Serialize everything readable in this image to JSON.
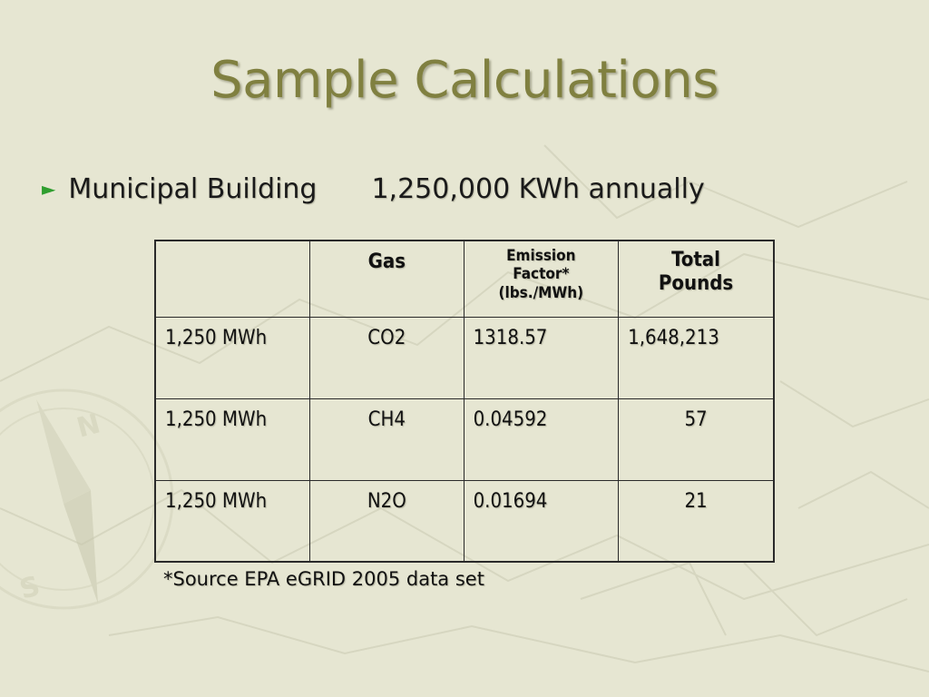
{
  "slide": {
    "title": "Sample Calculations",
    "bullet": {
      "icon": "triangle-right-bullet-icon",
      "label": "Municipal Building",
      "value": "1,250,000 KWh annually"
    },
    "table": {
      "headers": [
        "",
        "Gas",
        "Emission Factor* (lbs./MWh)",
        "Total Pounds"
      ],
      "header_factor_lines": [
        "Emission",
        "Factor*",
        "(lbs./MWh)"
      ],
      "header_total_lines": [
        "Total",
        "Pounds"
      ],
      "rows": [
        {
          "amount": "1,250 MWh",
          "gas": "CO2",
          "factor": "1318.57",
          "total": "1,648,213"
        },
        {
          "amount": "1,250 MWh",
          "gas": "CH4",
          "factor": "0.04592",
          "total": "57"
        },
        {
          "amount": "1,250 MWh",
          "gas": "N2O",
          "factor": "0.01694",
          "total": "21"
        }
      ]
    },
    "footnote": "*Source EPA eGRID 2005 data set"
  },
  "colors": {
    "background": "#e6e6d2",
    "title": "#808040",
    "bullet": "#2f9e2f"
  }
}
